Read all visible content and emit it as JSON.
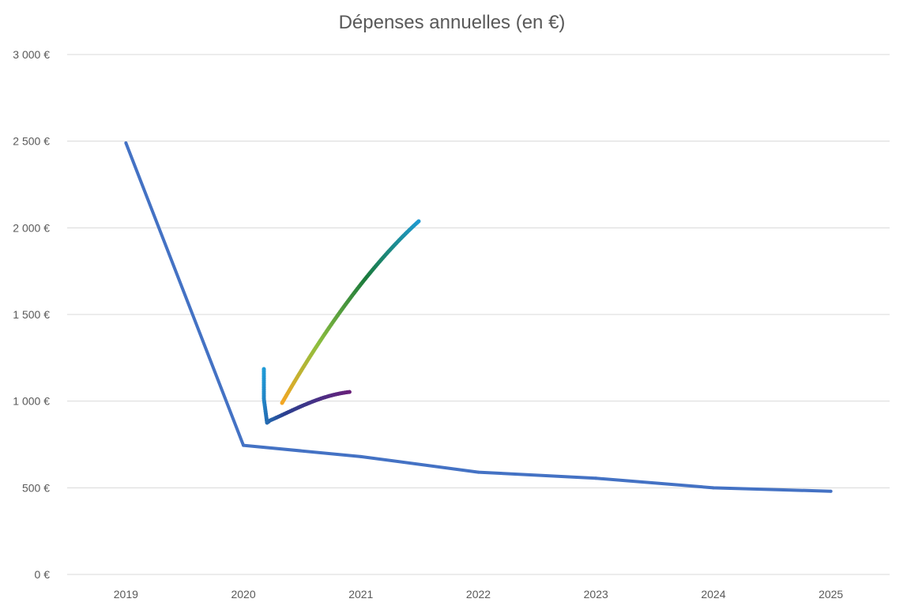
{
  "chart_data": {
    "type": "line",
    "title": "Dépenses annuelles (en €)",
    "xlabel": "",
    "ylabel": "",
    "categories": [
      "2019",
      "2020",
      "2021",
      "2022",
      "2023",
      "2024",
      "2025"
    ],
    "series": [
      {
        "values": [
          2490,
          745,
          680,
          590,
          555,
          500,
          480
        ],
        "color": "#4472c4"
      }
    ],
    "ylim": [
      0,
      3000
    ],
    "yticks": [
      0,
      500,
      1000,
      1500,
      2000,
      2500,
      3000
    ],
    "ytick_labels": [
      "0 €",
      "500 €",
      "1 000 €",
      "1 500 €",
      "2 000 €",
      "2 500 €",
      "3 000 €"
    ],
    "grid": true,
    "legend": "none",
    "annotations": [
      {
        "type": "hand-drawn-arrow",
        "points_to": "2020",
        "colors": [
          "#1f9bd7",
          "#1a7a3c",
          "#8dbf3f",
          "#f5a623",
          "#2a3f8f",
          "#6a1f7a"
        ]
      }
    ]
  }
}
